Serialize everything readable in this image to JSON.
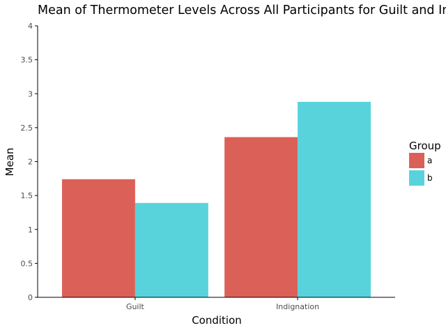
{
  "chart_data": {
    "type": "bar",
    "title": "Mean of Thermometer Levels Across All Participants for Guilt and Indignation",
    "xlabel": "Condition",
    "ylabel": "Mean",
    "categories": [
      "Guilt",
      "Indignation"
    ],
    "series": [
      {
        "name": "a",
        "values": [
          1.74,
          2.36
        ],
        "color": "#db6158"
      },
      {
        "name": "b",
        "values": [
          1.39,
          2.88
        ],
        "color": "#58d3dc"
      }
    ],
    "ylim": [
      0,
      4
    ],
    "yticks": [
      "0",
      "0.5",
      "1",
      "1.5",
      "2",
      "2.5",
      "3",
      "3.5",
      "4"
    ],
    "grid": false,
    "legend": {
      "title": "Group",
      "position": "right"
    }
  }
}
